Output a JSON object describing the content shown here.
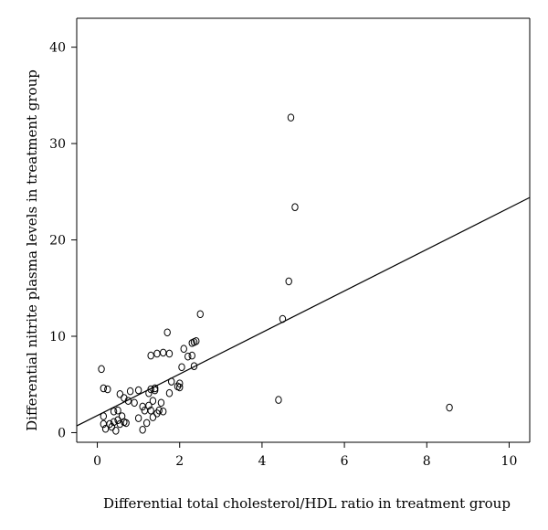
{
  "chart_data": {
    "type": "scatter",
    "xlabel": "Differential total cholesterol/HDL ratio in treatment group",
    "ylabel": "Differential nitrite plasma levels in treatment group",
    "xlim": [
      -0.5,
      10.5
    ],
    "ylim": [
      -1,
      43
    ],
    "x_ticks": [
      0,
      2,
      4,
      6,
      8,
      10
    ],
    "y_ticks": [
      0,
      10,
      20,
      30,
      40
    ],
    "x_tick_labels": [
      "0",
      "2",
      "4",
      "6",
      "8",
      "10"
    ],
    "y_tick_labels": [
      "0",
      "10",
      "20",
      "30",
      "40"
    ],
    "grid": false,
    "points": [
      {
        "x": 0.1,
        "y": 6.6
      },
      {
        "x": 0.15,
        "y": 4.6
      },
      {
        "x": 0.25,
        "y": 4.5
      },
      {
        "x": 0.15,
        "y": 1.7
      },
      {
        "x": 0.15,
        "y": 0.9
      },
      {
        "x": 0.2,
        "y": 0.4
      },
      {
        "x": 0.3,
        "y": 0.9
      },
      {
        "x": 0.35,
        "y": 0.6
      },
      {
        "x": 0.4,
        "y": 1.1
      },
      {
        "x": 0.45,
        "y": 0.2
      },
      {
        "x": 0.5,
        "y": 1.3
      },
      {
        "x": 0.55,
        "y": 0.9
      },
      {
        "x": 0.6,
        "y": 1.7
      },
      {
        "x": 0.65,
        "y": 1.1
      },
      {
        "x": 0.7,
        "y": 1.0
      },
      {
        "x": 0.4,
        "y": 2.2
      },
      {
        "x": 0.5,
        "y": 2.3
      },
      {
        "x": 0.55,
        "y": 4.0
      },
      {
        "x": 0.65,
        "y": 3.6
      },
      {
        "x": 0.75,
        "y": 3.3
      },
      {
        "x": 0.8,
        "y": 4.3
      },
      {
        "x": 0.9,
        "y": 3.1
      },
      {
        "x": 1.0,
        "y": 4.4
      },
      {
        "x": 1.0,
        "y": 1.5
      },
      {
        "x": 1.1,
        "y": 2.7
      },
      {
        "x": 1.1,
        "y": 0.3
      },
      {
        "x": 1.15,
        "y": 2.3
      },
      {
        "x": 1.2,
        "y": 1.0
      },
      {
        "x": 1.25,
        "y": 2.8
      },
      {
        "x": 1.25,
        "y": 4.1
      },
      {
        "x": 1.3,
        "y": 2.3
      },
      {
        "x": 1.35,
        "y": 1.6
      },
      {
        "x": 1.35,
        "y": 3.3
      },
      {
        "x": 1.4,
        "y": 4.6
      },
      {
        "x": 1.45,
        "y": 2.0
      },
      {
        "x": 1.5,
        "y": 2.3
      },
      {
        "x": 1.55,
        "y": 3.1
      },
      {
        "x": 1.6,
        "y": 2.2
      },
      {
        "x": 1.3,
        "y": 4.5
      },
      {
        "x": 1.4,
        "y": 4.4
      },
      {
        "x": 1.3,
        "y": 8.0
      },
      {
        "x": 1.45,
        "y": 8.2
      },
      {
        "x": 1.6,
        "y": 8.3
      },
      {
        "x": 1.75,
        "y": 8.2
      },
      {
        "x": 1.7,
        "y": 10.4
      },
      {
        "x": 1.75,
        "y": 4.1
      },
      {
        "x": 1.8,
        "y": 5.3
      },
      {
        "x": 1.95,
        "y": 4.8
      },
      {
        "x": 2.0,
        "y": 4.7
      },
      {
        "x": 2.0,
        "y": 5.1
      },
      {
        "x": 2.05,
        "y": 6.8
      },
      {
        "x": 2.1,
        "y": 8.7
      },
      {
        "x": 2.2,
        "y": 7.9
      },
      {
        "x": 2.3,
        "y": 8.0
      },
      {
        "x": 2.3,
        "y": 9.3
      },
      {
        "x": 2.35,
        "y": 9.4
      },
      {
        "x": 2.4,
        "y": 9.5
      },
      {
        "x": 2.35,
        "y": 6.9
      },
      {
        "x": 2.5,
        "y": 12.3
      },
      {
        "x": 4.4,
        "y": 3.4
      },
      {
        "x": 4.5,
        "y": 11.8
      },
      {
        "x": 4.65,
        "y": 15.7
      },
      {
        "x": 4.7,
        "y": 32.7
      },
      {
        "x": 4.8,
        "y": 23.4
      },
      {
        "x": 8.55,
        "y": 2.6
      }
    ],
    "fit_line": {
      "x": [
        -0.5,
        10.5
      ],
      "y": [
        0.7,
        24.4
      ]
    }
  }
}
